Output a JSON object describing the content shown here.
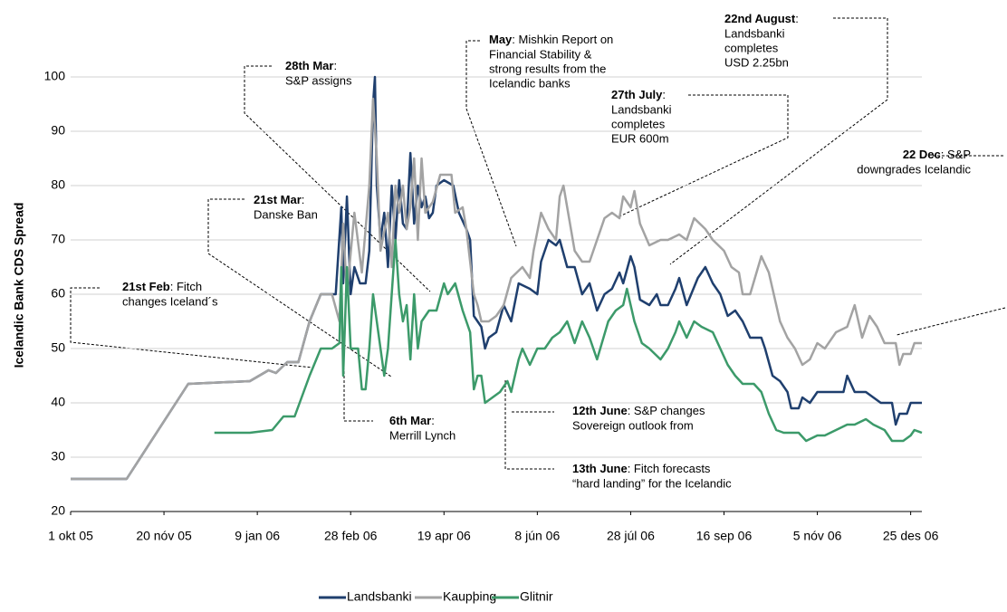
{
  "chart_data": {
    "type": "line",
    "y_label": "Icelandic Bank CDS Spread",
    "ylim": [
      20,
      100
    ],
    "yticks": [
      20,
      30,
      40,
      50,
      60,
      70,
      80,
      90,
      100
    ],
    "xlim": [
      0,
      456
    ],
    "xticks": [
      {
        "value": 0,
        "label": "1 okt 05"
      },
      {
        "value": 50,
        "label": "20 nóv 05"
      },
      {
        "value": 100,
        "label": "9 jan 06"
      },
      {
        "value": 150,
        "label": "28 feb 06"
      },
      {
        "value": 200,
        "label": "19 apr 06"
      },
      {
        "value": 250,
        "label": "8 jún 06"
      },
      {
        "value": 300,
        "label": "28 júl 06"
      },
      {
        "value": 350,
        "label": "16 sep 06"
      },
      {
        "value": 400,
        "label": "5 nóv 06"
      },
      {
        "value": 450,
        "label": "25 des 06"
      }
    ],
    "grid": true,
    "series": [
      {
        "name": "Landsbanki",
        "color": "#1f3f6e",
        "x": [
          0,
          30,
          63,
          96,
          106,
          110,
          116,
          122,
          128,
          134,
          138,
          142,
          145,
          146,
          148,
          150,
          152,
          155,
          158,
          160,
          162,
          163,
          164,
          166,
          168,
          170,
          172,
          174,
          176,
          178,
          180,
          182,
          184,
          186,
          188,
          190,
          192,
          194,
          196,
          200,
          205,
          208,
          212,
          214,
          216,
          218,
          220,
          222,
          224,
          228,
          232,
          236,
          240,
          246,
          250,
          252,
          256,
          260,
          262,
          266,
          270,
          274,
          278,
          282,
          286,
          290,
          294,
          296,
          300,
          302,
          305,
          310,
          314,
          316,
          320,
          324,
          326,
          330,
          336,
          340,
          344,
          348,
          352,
          356,
          360,
          364,
          370,
          372,
          376,
          380,
          384,
          386,
          390,
          392,
          396,
          400,
          410,
          414,
          416,
          420,
          426,
          430,
          434,
          440,
          442,
          444,
          448,
          450,
          456
        ],
        "values": [
          26,
          26,
          43.5,
          44,
          46,
          45.5,
          47.5,
          47.5,
          55,
          60,
          60,
          60,
          76,
          62,
          78,
          60,
          65,
          62,
          62,
          68,
          95,
          100,
          80,
          70,
          75,
          65,
          80,
          70,
          81,
          73,
          72,
          86,
          73,
          80,
          76,
          78,
          74,
          75,
          80,
          81,
          80,
          75,
          72,
          70,
          56,
          55,
          54,
          50,
          52,
          53,
          58,
          55,
          62,
          61,
          60,
          66,
          70,
          69,
          70,
          65,
          65,
          60,
          62,
          57,
          60,
          61,
          64,
          62,
          67,
          65,
          59,
          58,
          60,
          58,
          58,
          61,
          63,
          58,
          63,
          65,
          62,
          60,
          56,
          57,
          55,
          52,
          52,
          50,
          45,
          44,
          42,
          39,
          39,
          41,
          40,
          42,
          42,
          42,
          45,
          42,
          42,
          41,
          40,
          40,
          36,
          38,
          38,
          40,
          40
        ]
      },
      {
        "name": "Kaupþing",
        "color": "#a3a3a3",
        "x": [
          0,
          30,
          63,
          96,
          106,
          110,
          116,
          122,
          128,
          134,
          136,
          140,
          144,
          146,
          148,
          152,
          156,
          160,
          162,
          164,
          166,
          170,
          172,
          174,
          176,
          178,
          180,
          182,
          184,
          186,
          188,
          190,
          194,
          198,
          204,
          206,
          210,
          212,
          216,
          218,
          220,
          224,
          228,
          232,
          236,
          242,
          246,
          248,
          252,
          256,
          260,
          262,
          264,
          266,
          270,
          274,
          278,
          282,
          286,
          290,
          294,
          296,
          300,
          302,
          305,
          310,
          316,
          320,
          326,
          330,
          334,
          340,
          344,
          350,
          354,
          358,
          360,
          364,
          370,
          374,
          376,
          380,
          384,
          388,
          392,
          396,
          400,
          404,
          410,
          416,
          420,
          424,
          428,
          432,
          436,
          442,
          444,
          446,
          450,
          452,
          456
        ],
        "values": [
          26,
          26,
          43.5,
          44,
          46,
          45.5,
          47.5,
          47.5,
          55,
          60,
          60,
          60,
          55,
          73,
          60,
          75,
          64,
          80,
          96,
          85,
          68,
          75,
          65,
          80,
          75,
          80,
          72,
          76,
          85,
          70,
          85,
          75,
          77,
          82,
          82,
          75,
          76,
          72,
          60,
          58,
          55,
          55,
          56,
          58,
          63,
          65,
          63,
          68,
          75,
          72,
          70,
          78,
          80,
          76,
          68,
          66,
          66,
          70,
          74,
          75,
          74,
          78,
          76,
          79,
          73,
          69,
          70,
          70,
          71,
          70,
          74,
          72,
          70,
          68,
          65,
          64,
          60,
          60,
          67,
          64,
          61,
          55,
          52,
          50,
          47,
          48,
          51,
          50,
          53,
          54,
          58,
          52,
          56,
          54,
          51,
          51,
          47,
          49,
          49,
          51,
          51
        ]
      },
      {
        "name": "Glitnir",
        "color": "#3c9a6a",
        "x": [
          77,
          96,
          108,
          114,
          120,
          128,
          134,
          140,
          144,
          145,
          146,
          148,
          150,
          154,
          156,
          158,
          160,
          162,
          164,
          166,
          168,
          170,
          172,
          174,
          176,
          178,
          180,
          182,
          184,
          186,
          188,
          192,
          196,
          200,
          202,
          206,
          210,
          214,
          216,
          218,
          220,
          222,
          226,
          230,
          234,
          236,
          240,
          242,
          246,
          250,
          254,
          258,
          262,
          266,
          270,
          274,
          278,
          282,
          288,
          292,
          296,
          298,
          302,
          306,
          310,
          316,
          320,
          324,
          326,
          330,
          334,
          338,
          344,
          348,
          352,
          356,
          360,
          366,
          370,
          374,
          378,
          382,
          390,
          394,
          400,
          404,
          410,
          416,
          420,
          426,
          430,
          436,
          440,
          446,
          450,
          452,
          456
        ],
        "values": [
          34.5,
          34.5,
          35,
          37.5,
          37.5,
          45,
          50,
          50,
          51,
          65,
          45,
          65,
          50,
          50,
          42.5,
          42.5,
          50,
          60,
          55,
          50,
          45,
          50,
          60,
          70,
          60,
          55,
          58,
          48,
          60,
          50,
          55,
          57,
          57,
          62,
          60,
          62,
          57,
          53,
          42.5,
          45,
          45,
          40,
          41,
          42,
          44,
          42,
          48,
          50,
          47,
          50,
          50,
          52,
          53,
          55,
          51,
          55,
          52,
          48,
          55,
          57,
          58,
          61,
          55,
          51,
          50,
          48,
          50,
          53,
          55,
          52,
          55,
          54,
          53,
          50,
          47,
          45,
          43.5,
          43.5,
          42,
          38,
          35,
          34.5,
          34.5,
          33,
          34,
          34,
          35,
          36,
          36,
          37,
          36,
          35,
          33,
          33,
          34,
          35,
          34.5
        ]
      }
    ],
    "annotations": [
      {
        "title": "28th Mar",
        "rest": ":",
        "lines": [
          "S&P assigns"
        ]
      },
      {
        "title": "May",
        "rest": ": Mishkin Report on",
        "lines": [
          "Financial Stability &",
          "strong results from the",
          "Icelandic banks"
        ]
      },
      {
        "title": "22nd August",
        "rest": ":",
        "lines": [
          "Landsbanki",
          "completes",
          "USD 2.25bn"
        ]
      },
      {
        "title": "27th July",
        "rest": ":",
        "lines": [
          "Landsbanki",
          "completes",
          "EUR 600m"
        ]
      },
      {
        "title": "22 Dec",
        "rest": ": S&P",
        "lines": [
          "downgrades Icelandic"
        ]
      },
      {
        "title": "21st Mar",
        "rest": ":",
        "lines": [
          "Danske Ban"
        ]
      },
      {
        "title": "21st Feb",
        "rest": ": Fitch",
        "lines": [
          "changes Iceland´s"
        ]
      },
      {
        "title": "6th Mar",
        "rest": ":",
        "lines": [
          "Merrill Lynch"
        ]
      },
      {
        "title": "12th June",
        "rest": ": S&P changes",
        "lines": [
          "Sovereign outlook from"
        ]
      },
      {
        "title": "13th June",
        "rest": ": Fitch forecasts",
        "lines": [
          "“hard landing” for the Icelandic"
        ]
      }
    ]
  }
}
